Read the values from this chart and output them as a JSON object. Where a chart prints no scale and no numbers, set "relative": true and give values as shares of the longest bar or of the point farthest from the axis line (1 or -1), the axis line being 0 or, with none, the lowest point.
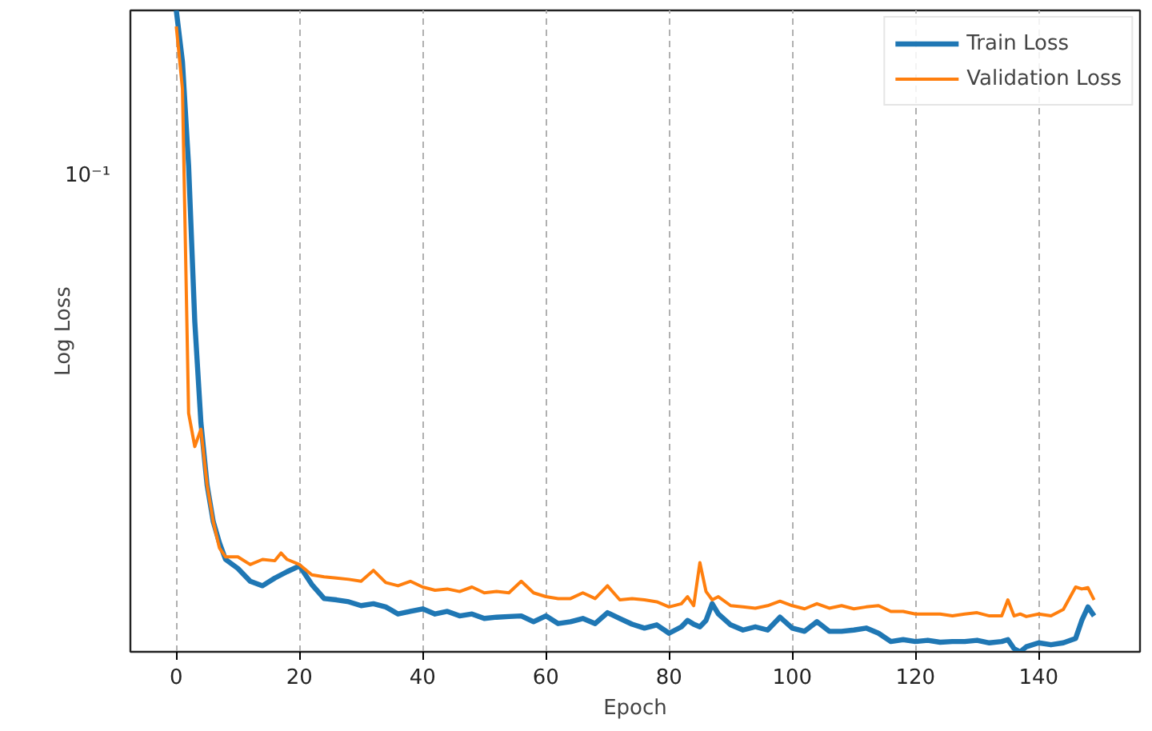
{
  "chart_data": {
    "type": "line",
    "relative": true,
    "xlabel": "Epoch",
    "ylabel": "Log Loss",
    "grid": "x",
    "legend": "top right",
    "line_style": "solid",
    "annotations": [
      "10⁻¹"
    ],
    "xlim": [
      -7.45,
      156.45
    ],
    "xticks": [
      0,
      20,
      40,
      60,
      80,
      100,
      120,
      140
    ],
    "x": [
      0,
      1,
      2,
      3,
      4,
      5,
      6,
      7,
      8,
      10,
      12,
      14,
      16,
      17,
      18,
      20,
      22,
      24,
      26,
      28,
      30,
      32,
      34,
      36,
      38,
      40,
      42,
      44,
      46,
      48,
      50,
      52,
      54,
      56,
      58,
      60,
      62,
      64,
      66,
      68,
      70,
      72,
      74,
      76,
      78,
      80,
      82,
      83,
      84,
      85,
      86,
      87,
      88,
      90,
      92,
      94,
      96,
      98,
      100,
      102,
      104,
      106,
      108,
      110,
      112,
      114,
      116,
      118,
      120,
      122,
      124,
      126,
      128,
      130,
      132,
      134,
      135,
      136,
      137,
      138,
      140,
      142,
      144,
      146,
      147,
      148,
      149
    ],
    "series": [
      {
        "name": "Train Loss",
        "color": "#1f77b4",
        "values": [
          1.0,
          0.92,
          0.758,
          0.515,
          0.357,
          0.26,
          0.203,
          0.17,
          0.144,
          0.13,
          0.11,
          0.103,
          0.115,
          0.12,
          0.125,
          0.134,
          0.105,
          0.083,
          0.081,
          0.078,
          0.072,
          0.075,
          0.07,
          0.059,
          0.063,
          0.067,
          0.059,
          0.063,
          0.056,
          0.059,
          0.052,
          0.054,
          0.055,
          0.056,
          0.047,
          0.056,
          0.044,
          0.047,
          0.052,
          0.044,
          0.061,
          0.052,
          0.043,
          0.037,
          0.042,
          0.029,
          0.039,
          0.049,
          0.043,
          0.039,
          0.049,
          0.075,
          0.059,
          0.042,
          0.034,
          0.039,
          0.034,
          0.054,
          0.037,
          0.032,
          0.047,
          0.032,
          0.032,
          0.034,
          0.037,
          0.029,
          0.016,
          0.019,
          0.016,
          0.018,
          0.015,
          0.016,
          0.016,
          0.018,
          0.014,
          0.016,
          0.019,
          0.005,
          0,
          0.008,
          0.014,
          0.011,
          0.014,
          0.021,
          0.049,
          0.07,
          0.056
        ]
      },
      {
        "name": "Validation Loss",
        "color": "#ff7f0e",
        "values": [
          0.975,
          0.878,
          0.372,
          0.32,
          0.347,
          0.26,
          0.203,
          0.162,
          0.148,
          0.148,
          0.136,
          0.144,
          0.142,
          0.154,
          0.144,
          0.136,
          0.12,
          0.117,
          0.115,
          0.113,
          0.11,
          0.127,
          0.108,
          0.103,
          0.11,
          0.101,
          0.096,
          0.098,
          0.094,
          0.101,
          0.092,
          0.094,
          0.092,
          0.11,
          0.092,
          0.086,
          0.083,
          0.083,
          0.092,
          0.083,
          0.103,
          0.081,
          0.083,
          0.081,
          0.078,
          0.07,
          0.075,
          0.086,
          0.072,
          0.139,
          0.094,
          0.081,
          0.086,
          0.072,
          0.07,
          0.068,
          0.072,
          0.079,
          0.072,
          0.067,
          0.075,
          0.068,
          0.072,
          0.067,
          0.07,
          0.072,
          0.063,
          0.063,
          0.059,
          0.059,
          0.059,
          0.056,
          0.059,
          0.061,
          0.056,
          0.056,
          0.081,
          0.056,
          0.059,
          0.055,
          0.059,
          0.056,
          0.066,
          0.101,
          0.098,
          0.1,
          0.081
        ]
      }
    ]
  }
}
